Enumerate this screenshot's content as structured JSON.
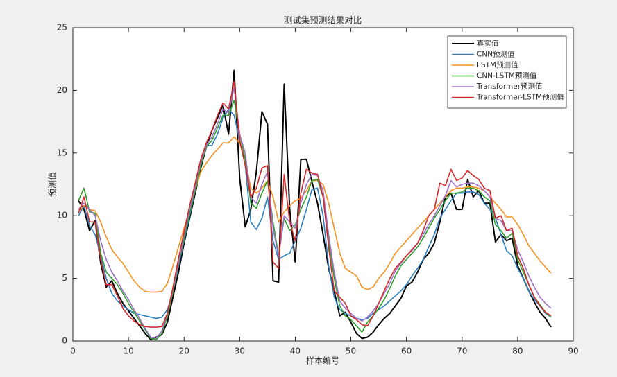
{
  "chart_data": {
    "type": "line",
    "title": "测试集预测结果对比",
    "xlabel": "样本编号",
    "ylabel": "预测值",
    "x": [
      1,
      2,
      3,
      4,
      5,
      6,
      7,
      8,
      9,
      10,
      11,
      12,
      13,
      14,
      15,
      16,
      17,
      18,
      19,
      20,
      21,
      22,
      23,
      24,
      25,
      26,
      27,
      28,
      29,
      30,
      31,
      32,
      33,
      34,
      35,
      36,
      37,
      38,
      39,
      40,
      41,
      42,
      43,
      44,
      45,
      46,
      47,
      48,
      49,
      50,
      51,
      52,
      53,
      54,
      55,
      56,
      57,
      58,
      59,
      60,
      61,
      62,
      63,
      64,
      65,
      66,
      67,
      68,
      69,
      70,
      71,
      72,
      73,
      74,
      75,
      76,
      77,
      78,
      79,
      80,
      81,
      82,
      83,
      84,
      85,
      86
    ],
    "series": [
      {
        "name": "真实值",
        "color": "#000000",
        "width": 2,
        "values": [
          11.2,
          10.5,
          8.8,
          9.6,
          6.2,
          4.3,
          4.8,
          3.8,
          3.0,
          2.4,
          1.8,
          1.2,
          0.6,
          0.1,
          0.3,
          0.5,
          1.5,
          3.5,
          5.5,
          7.8,
          9.8,
          11.8,
          13.8,
          15.5,
          16.8,
          17.8,
          18.8,
          16.5,
          21.6,
          13.0,
          9.1,
          10.5,
          13.5,
          18.3,
          17.3,
          4.8,
          4.7,
          20.5,
          10.5,
          6.3,
          14.5,
          14.5,
          12.7,
          11.0,
          8.5,
          5.8,
          4.0,
          2.0,
          2.3,
          1.5,
          0.6,
          0.2,
          0.3,
          0.7,
          1.3,
          1.8,
          2.2,
          2.8,
          3.4,
          4.4,
          4.7,
          5.5,
          6.5,
          7.0,
          7.8,
          9.5,
          11.5,
          11.8,
          10.5,
          10.5,
          12.9,
          11.5,
          12.0,
          11.0,
          11.0,
          7.9,
          8.5,
          8.0,
          8.2,
          6.0,
          5.0,
          4.0,
          3.1,
          2.3,
          1.8,
          1.1
        ]
      },
      {
        "name": "CNN预测值",
        "color": "#2a7fc0",
        "width": 1.6,
        "values": [
          10.0,
          10.8,
          9.2,
          8.5,
          6.8,
          5.0,
          3.8,
          3.2,
          2.8,
          2.5,
          2.2,
          2.1,
          2.0,
          1.9,
          1.8,
          1.9,
          2.5,
          4.0,
          6.0,
          8.0,
          10.0,
          12.0,
          14.0,
          15.6,
          15.6,
          16.5,
          17.8,
          18.5,
          18.0,
          16.0,
          14.0,
          9.5,
          8.9,
          9.8,
          11.5,
          8.0,
          6.5,
          6.8,
          7.0,
          8.0,
          9.0,
          10.5,
          12.1,
          12.2,
          10.0,
          6.0,
          3.5,
          2.5,
          2.2,
          2.0,
          1.8,
          1.7,
          1.8,
          2.2,
          2.5,
          2.8,
          3.2,
          3.6,
          4.0,
          4.5,
          5.2,
          5.8,
          6.5,
          7.5,
          8.5,
          9.8,
          10.5,
          11.2,
          11.8,
          11.8,
          11.9,
          11.9,
          11.7,
          11.0,
          10.5,
          9.8,
          8.5,
          7.2,
          6.8,
          5.8,
          5.0,
          4.0,
          3.3,
          2.8,
          2.2,
          1.9
        ]
      },
      {
        "name": "LSTM预测值",
        "color": "#f5901e",
        "width": 1.6,
        "values": [
          10.3,
          10.8,
          10.5,
          10.4,
          9.5,
          8.3,
          7.3,
          6.7,
          6.2,
          5.5,
          4.8,
          4.3,
          3.95,
          3.9,
          3.9,
          3.95,
          4.6,
          6.0,
          7.5,
          9.0,
          10.5,
          12.0,
          13.5,
          14.2,
          14.8,
          15.3,
          15.8,
          15.8,
          16.3,
          15.8,
          14.5,
          12.2,
          11.8,
          12.2,
          12.8,
          11.5,
          9.5,
          10.3,
          10.8,
          11.2,
          11.4,
          12.0,
          12.8,
          12.8,
          12.5,
          11.0,
          9.0,
          7.0,
          5.8,
          5.5,
          5.2,
          4.3,
          4.1,
          4.3,
          5.0,
          5.5,
          6.2,
          7.0,
          7.5,
          8.0,
          8.5,
          9.0,
          9.5,
          10.0,
          10.5,
          11.0,
          11.5,
          12.0,
          12.2,
          12.2,
          12.3,
          12.3,
          12.2,
          12.0,
          11.5,
          11.0,
          10.5,
          9.9,
          9.9,
          9.3,
          8.5,
          7.6,
          7.0,
          6.4,
          5.9,
          5.4
        ]
      },
      {
        "name": "CNN-LSTM预测值",
        "color": "#2ca02c",
        "width": 1.6,
        "values": [
          11.2,
          12.2,
          10.3,
          10.2,
          7.0,
          5.5,
          5.0,
          4.5,
          3.8,
          3.0,
          2.3,
          1.6,
          0.9,
          0.2,
          0.1,
          0.6,
          2.0,
          4.0,
          6.2,
          8.2,
          10.2,
          12.0,
          14.0,
          15.5,
          16.0,
          17.0,
          18.0,
          18.0,
          19.2,
          16.5,
          14.5,
          11.0,
          10.6,
          11.8,
          12.8,
          9.5,
          6.8,
          9.8,
          8.8,
          9.3,
          10.5,
          11.5,
          12.8,
          12.9,
          11.5,
          8.0,
          5.0,
          2.8,
          2.0,
          1.7,
          1.2,
          0.7,
          1.5,
          2.0,
          2.6,
          3.3,
          4.2,
          5.2,
          6.0,
          6.5,
          7.0,
          7.5,
          8.2,
          9.0,
          9.8,
          10.5,
          11.2,
          11.8,
          11.8,
          11.9,
          12.2,
          12.2,
          12.0,
          11.5,
          11.2,
          9.3,
          8.8,
          8.2,
          8.6,
          6.5,
          5.5,
          4.5,
          3.5,
          2.9,
          2.3,
          1.9
        ]
      },
      {
        "name": "Transformer预测值",
        "color": "#a070c8",
        "width": 1.6,
        "values": [
          10.5,
          11.0,
          10.5,
          10.0,
          8.0,
          6.5,
          5.5,
          4.8,
          4.0,
          3.3,
          2.5,
          1.8,
          1.0,
          0.3,
          0.2,
          0.8,
          2.2,
          4.2,
          6.3,
          8.5,
          10.5,
          12.3,
          14.3,
          15.6,
          16.3,
          17.3,
          18.5,
          18.2,
          20.2,
          16.5,
          15.0,
          11.5,
          11.0,
          12.5,
          13.5,
          9.0,
          6.7,
          10.0,
          9.5,
          9.0,
          11.0,
          12.5,
          13.3,
          13.2,
          12.0,
          8.5,
          5.5,
          3.2,
          2.6,
          2.2,
          1.8,
          1.6,
          1.9,
          2.4,
          3.0,
          3.8,
          4.6,
          5.6,
          6.2,
          6.8,
          7.2,
          7.8,
          8.5,
          9.3,
          10.0,
          10.8,
          11.6,
          12.8,
          12.3,
          12.5,
          12.6,
          12.6,
          12.4,
          12.0,
          11.5,
          9.8,
          9.6,
          8.8,
          8.8,
          7.3,
          6.3,
          5.2,
          4.3,
          3.5,
          3.0,
          2.6
        ]
      },
      {
        "name": "Transformer-LSTM预测值",
        "color": "#d62728",
        "width": 1.6,
        "values": [
          10.2,
          11.5,
          9.5,
          9.5,
          6.5,
          4.5,
          4.5,
          3.6,
          2.6,
          2.0,
          1.6,
          1.3,
          1.15,
          1.1,
          1.1,
          1.15,
          2.2,
          4.3,
          6.6,
          8.7,
          10.8,
          12.6,
          14.5,
          15.8,
          16.8,
          18.0,
          19.0,
          18.5,
          20.7,
          16.0,
          14.0,
          11.5,
          12.2,
          13.8,
          14.0,
          6.3,
          5.8,
          13.3,
          9.5,
          8.0,
          11.8,
          13.7,
          13.4,
          13.3,
          11.5,
          7.5,
          4.0,
          3.5,
          3.0,
          2.0,
          1.7,
          1.3,
          1.2,
          2.0,
          3.0,
          4.0,
          5.0,
          5.8,
          6.3,
          6.8,
          7.3,
          7.8,
          8.8,
          10.0,
          10.5,
          12.6,
          12.4,
          13.7,
          12.8,
          13.0,
          13.6,
          13.2,
          12.9,
          12.2,
          12.0,
          9.8,
          10.0,
          8.8,
          9.0,
          6.8,
          5.8,
          4.5,
          3.5,
          2.8,
          2.3,
          2.0
        ]
      }
    ],
    "xlim": [
      0,
      90
    ],
    "xticks": [
      0,
      10,
      20,
      30,
      40,
      50,
      60,
      70,
      80,
      90
    ],
    "ylim": [
      0,
      25
    ],
    "yticks": [
      0,
      5,
      10,
      15,
      20,
      25
    ],
    "legend": "northeast"
  }
}
